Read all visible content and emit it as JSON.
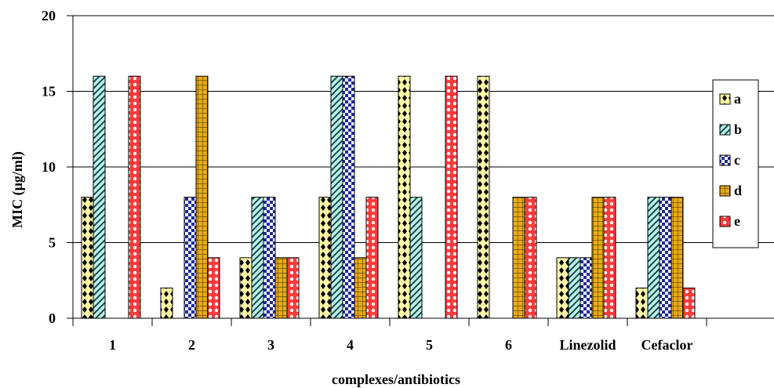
{
  "chart_data": {
    "type": "bar",
    "title": "",
    "xlabel": "complexes/antibiotics",
    "ylabel": "MIC (µg/ml)",
    "ylim": [
      0,
      20
    ],
    "yticks": [
      "0",
      "5",
      "10",
      "15",
      "20"
    ],
    "grid": true,
    "legend_position": "right",
    "categories": [
      "1",
      "2",
      "3",
      "4",
      "5",
      "6",
      "Linezolid",
      "Cefaclor"
    ],
    "series": [
      {
        "name": "a",
        "color": "#FFF7A8",
        "pattern": "diamond",
        "values": [
          8,
          2,
          4,
          8,
          16,
          16,
          4,
          2
        ]
      },
      {
        "name": "b",
        "color": "#BFF0E6",
        "pattern": "diagonal",
        "values": [
          16,
          0,
          8,
          16,
          8,
          0,
          4,
          8
        ]
      },
      {
        "name": "c",
        "color": "#1F2A99",
        "pattern": "checker",
        "values": [
          0,
          8,
          8,
          16,
          0,
          0,
          4,
          8
        ]
      },
      {
        "name": "d",
        "color": "#E9AA12",
        "pattern": "grid",
        "values": [
          0,
          16,
          4,
          4,
          0,
          8,
          8,
          8
        ]
      },
      {
        "name": "e",
        "color": "#FF3B3B",
        "pattern": "circles",
        "values": [
          16,
          4,
          4,
          8,
          16,
          8,
          8,
          2
        ]
      }
    ]
  }
}
